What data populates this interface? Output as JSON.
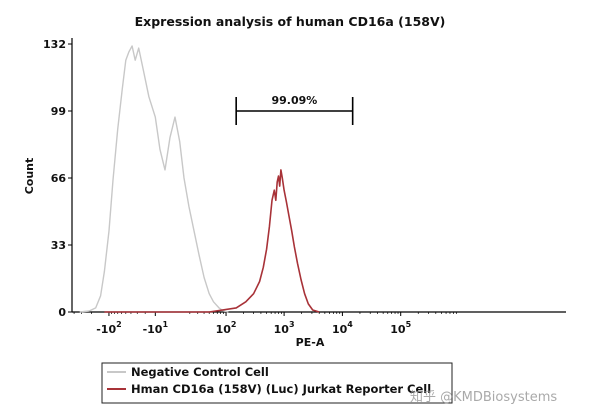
{
  "chart_data": {
    "type": "line",
    "title": "Expression analysis of human CD16a (158V)",
    "xlabel": "PE-A",
    "ylabel": "Count",
    "xscale": "biexponential",
    "ylim": [
      0,
      132
    ],
    "y_ticks": [
      {
        "value": 0,
        "label": "0"
      },
      {
        "value": 33,
        "label": "33"
      },
      {
        "value": 66,
        "label": "66"
      },
      {
        "value": 99,
        "label": "99"
      },
      {
        "value": 132,
        "label": "132"
      }
    ],
    "x_ticks": [
      {
        "value": -100,
        "base": "-10",
        "exp": "2"
      },
      {
        "value": -10,
        "base": "-10",
        "exp": "1"
      },
      {
        "value": 100,
        "base": "10",
        "exp": "2"
      },
      {
        "value": 1000,
        "base": "10",
        "exp": "3"
      },
      {
        "value": 10000,
        "base": "10",
        "exp": "4"
      },
      {
        "value": 100000,
        "base": "10",
        "exp": "5"
      }
    ],
    "gate": {
      "x_start": 150,
      "x_end": 15000,
      "y": 99,
      "label": "99.09%"
    },
    "series": [
      {
        "name": "Negative Control Cell",
        "color": "#c8c8c8",
        "points": [
          [
            -320,
            0
          ],
          [
            -220,
            0.5
          ],
          [
            -170,
            2
          ],
          [
            -140,
            8
          ],
          [
            -120,
            20
          ],
          [
            -100,
            40
          ],
          [
            -85,
            65
          ],
          [
            -70,
            90
          ],
          [
            -58,
            110
          ],
          [
            -50,
            124
          ],
          [
            -44,
            128
          ],
          [
            -38,
            131
          ],
          [
            -33,
            124
          ],
          [
            -28,
            130
          ],
          [
            -22,
            119
          ],
          [
            -16,
            106
          ],
          [
            -10,
            96
          ],
          [
            -6,
            80
          ],
          [
            -2,
            70
          ],
          [
            2,
            86
          ],
          [
            6,
            96
          ],
          [
            10,
            84
          ],
          [
            14,
            66
          ],
          [
            19,
            52
          ],
          [
            25,
            40
          ],
          [
            32,
            28
          ],
          [
            40,
            17
          ],
          [
            50,
            9
          ],
          [
            60,
            5
          ],
          [
            75,
            2
          ],
          [
            90,
            0.5
          ],
          [
            110,
            0
          ]
        ]
      },
      {
        "name": "Hman CD16a (158V) (Luc) Jurkat Reporter Cell",
        "color": "#a83238",
        "points": [
          [
            -120,
            0
          ],
          [
            50,
            0
          ],
          [
            150,
            2
          ],
          [
            220,
            5
          ],
          [
            300,
            9
          ],
          [
            380,
            15
          ],
          [
            440,
            22
          ],
          [
            500,
            31
          ],
          [
            560,
            42
          ],
          [
            620,
            55
          ],
          [
            680,
            60
          ],
          [
            720,
            55
          ],
          [
            760,
            64
          ],
          [
            800,
            67
          ],
          [
            840,
            62
          ],
          [
            880,
            70
          ],
          [
            930,
            66
          ],
          [
            1000,
            60
          ],
          [
            1100,
            54
          ],
          [
            1200,
            48
          ],
          [
            1350,
            40
          ],
          [
            1500,
            32
          ],
          [
            1700,
            24
          ],
          [
            1950,
            16
          ],
          [
            2250,
            9
          ],
          [
            2600,
            4
          ],
          [
            3100,
            1
          ],
          [
            4000,
            0
          ]
        ]
      }
    ],
    "legend": [
      {
        "label": "Negative Control Cell",
        "color": "#c8c8c8"
      },
      {
        "label": "Hman CD16a (158V) (Luc) Jurkat Reporter Cell",
        "color": "#a83238"
      }
    ]
  },
  "watermark": "知乎 @KMDBiosystems"
}
